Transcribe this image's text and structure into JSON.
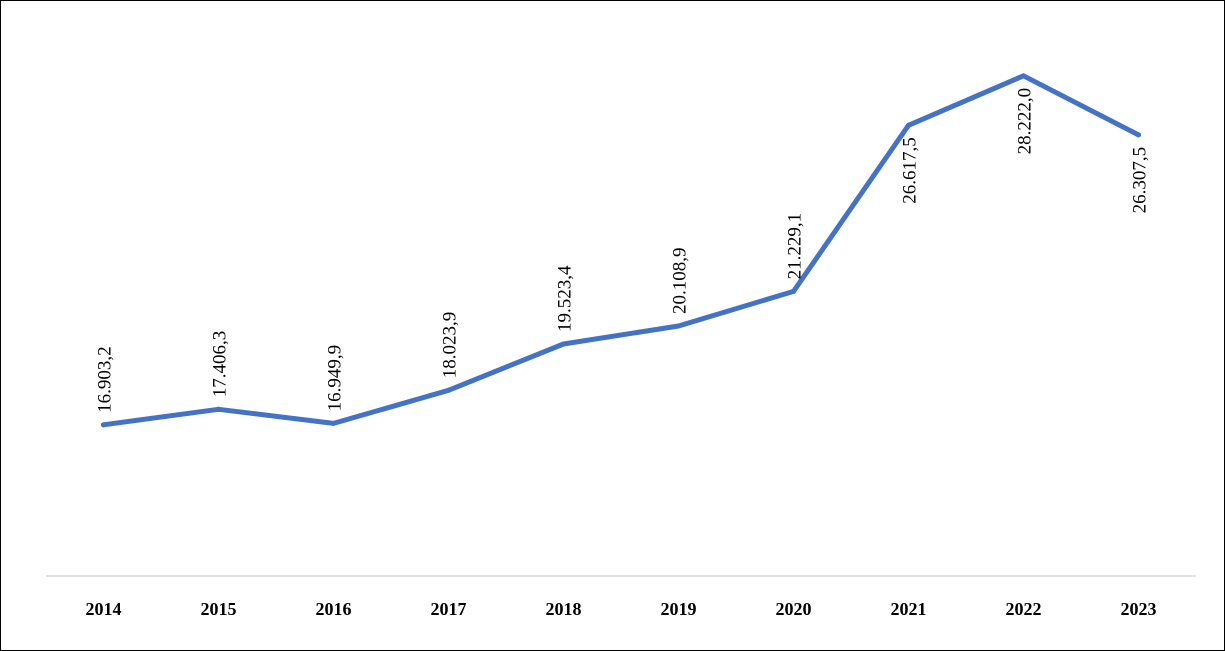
{
  "chart_data": {
    "type": "line",
    "title": "",
    "xlabel": "",
    "ylabel": "",
    "categories": [
      "2014",
      "2015",
      "2016",
      "2017",
      "2018",
      "2019",
      "2020",
      "2021",
      "2022",
      "2023"
    ],
    "series": [
      {
        "values": [
          16903.2,
          17406.3,
          16949.9,
          18023.9,
          19523.4,
          20108.9,
          21229.1,
          26617.5,
          28222.0,
          26307.5
        ],
        "data_labels": [
          "16.903,2",
          "17.406,3",
          "16.949,9",
          "18.023,9",
          "19.523,4",
          "20.108,9",
          "21.229,1",
          "26.617,5",
          "28.222,0",
          "26.307,5"
        ],
        "color": "#4472C4"
      }
    ],
    "highlighted_label_index": 9,
    "highlight_color": "#FF0000",
    "label_color": "#000000",
    "axis_line_color": "#D9D9D9",
    "ylim": [
      12000,
      30000
    ],
    "grid": false,
    "legend": "none"
  }
}
